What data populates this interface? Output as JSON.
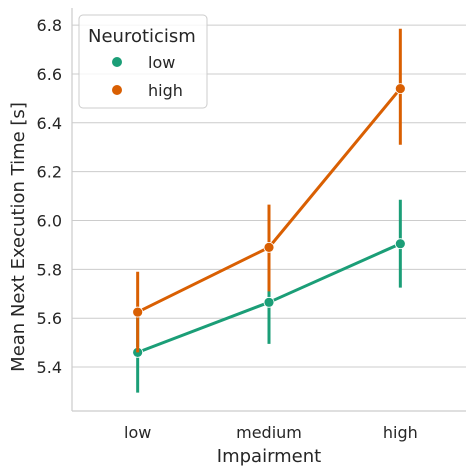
{
  "chart_data": {
    "type": "line",
    "xlabel": "Impairment",
    "ylabel": "Mean Next Execution Time [s]",
    "categories": [
      "low",
      "medium",
      "high"
    ],
    "ylim": [
      5.22,
      6.87
    ],
    "yticks": [
      5.4,
      5.6,
      5.8,
      6.0,
      6.2,
      6.4,
      6.6,
      6.8
    ],
    "ytick_labels": [
      "5.4",
      "5.6",
      "5.8",
      "6.0",
      "6.2",
      "6.4",
      "6.6",
      "6.8"
    ],
    "grid": "horizontal",
    "legend": {
      "title": "Neuroticism",
      "placement": "top-left"
    },
    "series": [
      {
        "name": "low",
        "color": "#1b9e77",
        "values": [
          5.46,
          5.665,
          5.905
        ],
        "ci_low": [
          5.295,
          5.495,
          5.725
        ],
        "ci_high": [
          5.62,
          5.83,
          6.085
        ]
      },
      {
        "name": "high",
        "color": "#d95f02",
        "values": [
          5.625,
          5.89,
          6.54
        ],
        "ci_low": [
          5.46,
          5.71,
          6.31
        ],
        "ci_high": [
          5.79,
          6.065,
          6.785
        ]
      }
    ]
  }
}
